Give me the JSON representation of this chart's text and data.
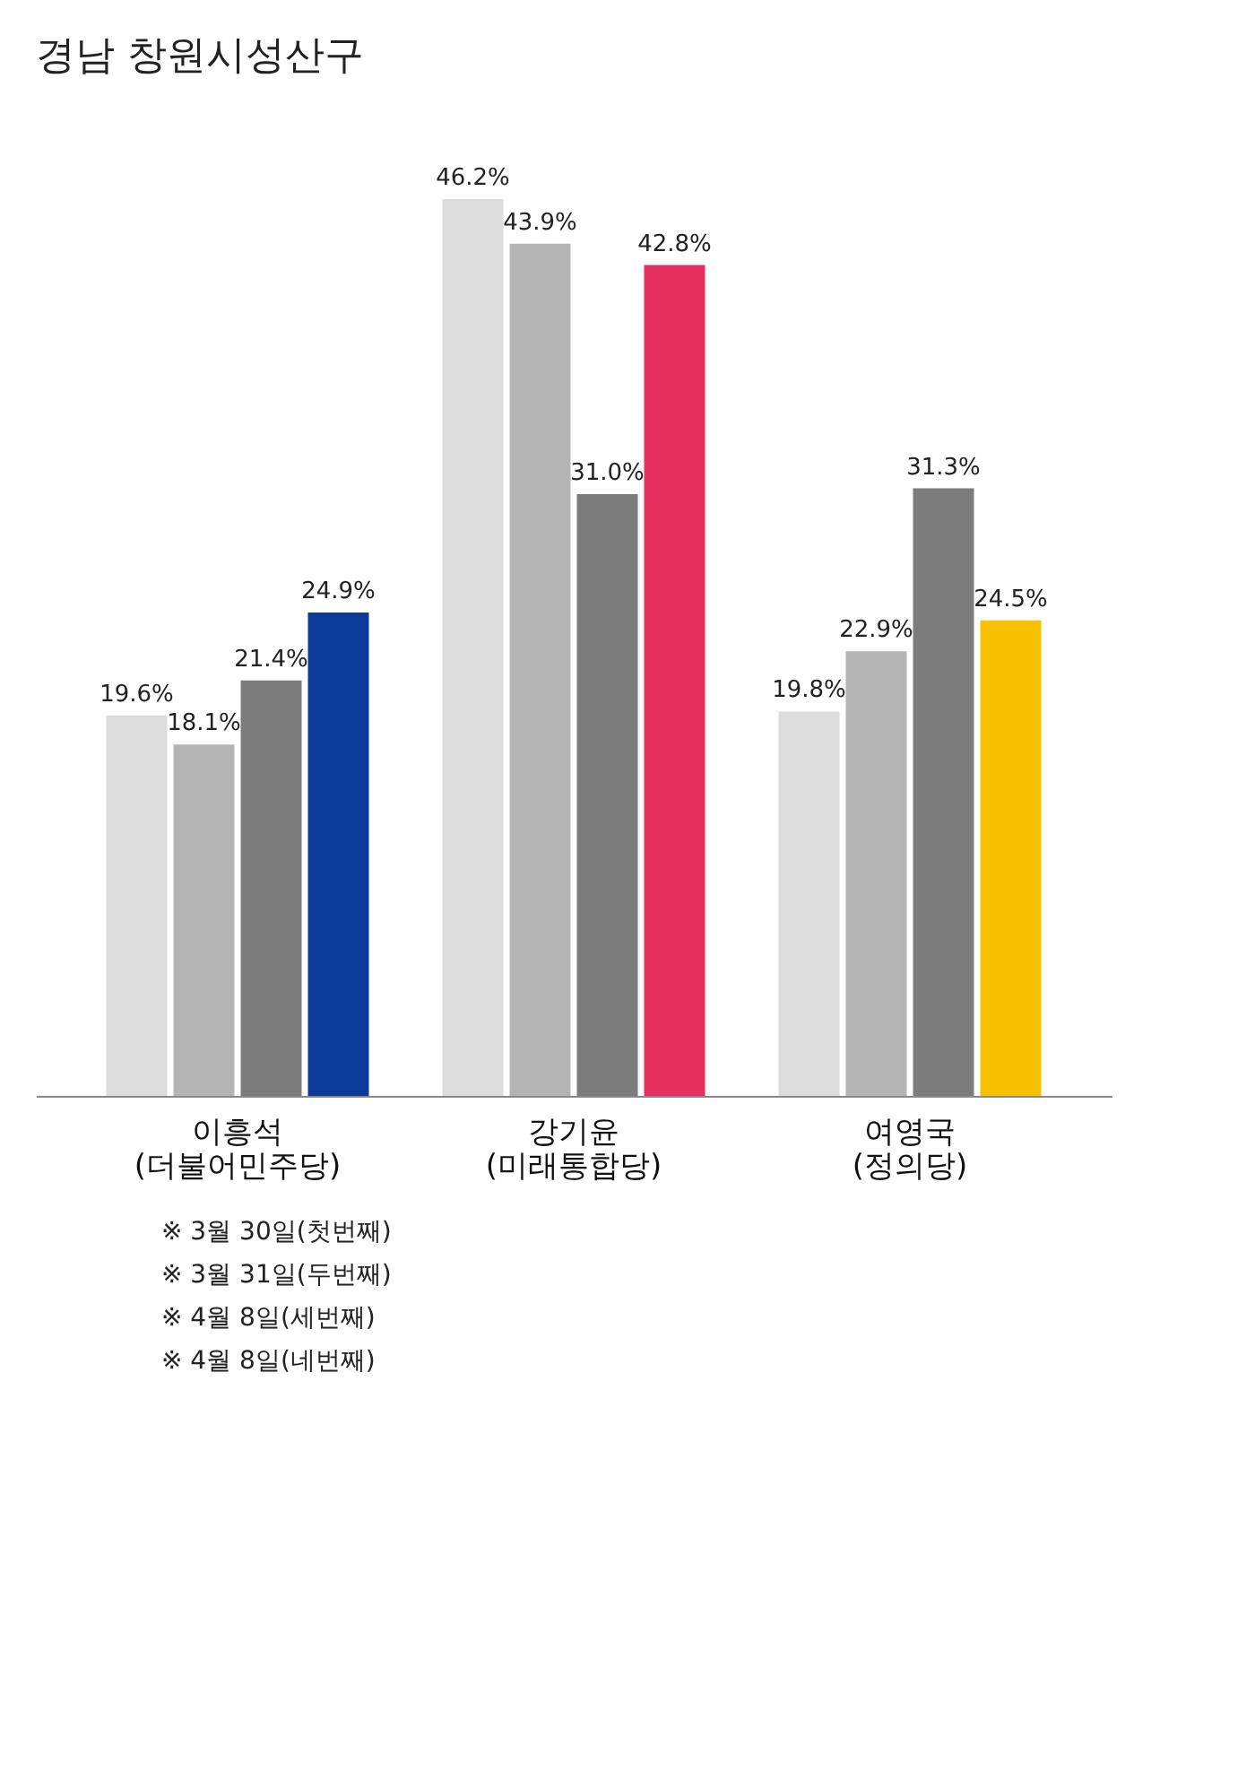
{
  "chart_data": {
    "type": "bar",
    "title": "경남 창원시성산구",
    "categories": [
      "이흥석\n(더불어민주당)",
      "강기윤\n(미래통합당)",
      "여영국\n(정의당)"
    ],
    "series": [
      {
        "color": "#dcdcdc",
        "values": [
          19.6,
          46.2,
          19.8
        ],
        "value_labels": [
          "19.6%",
          "46.2%",
          "19.8%"
        ]
      },
      {
        "color": "#b4b4b4",
        "values": [
          18.1,
          43.9,
          22.9
        ],
        "value_labels": [
          "18.1%",
          "43.9%",
          "22.9%"
        ]
      },
      {
        "color": "#7c7c7c",
        "values": [
          21.4,
          31.0,
          31.3
        ],
        "value_labels": [
          "21.4%",
          "31.0%",
          "31.3%"
        ]
      },
      {
        "colors": [
          "#0b3a9a",
          "#e5305f",
          "#f7c100"
        ],
        "values": [
          24.9,
          42.8,
          24.5
        ],
        "value_labels": [
          "24.9%",
          "42.8%",
          "24.5%"
        ]
      }
    ],
    "grid": false,
    "annotations": [
      "※ 3월 30일(첫번째)",
      "※ 3월 31일(두번째)",
      "※ 4월 8일(세번째)",
      "※ 4월 8일(네번째)"
    ]
  }
}
